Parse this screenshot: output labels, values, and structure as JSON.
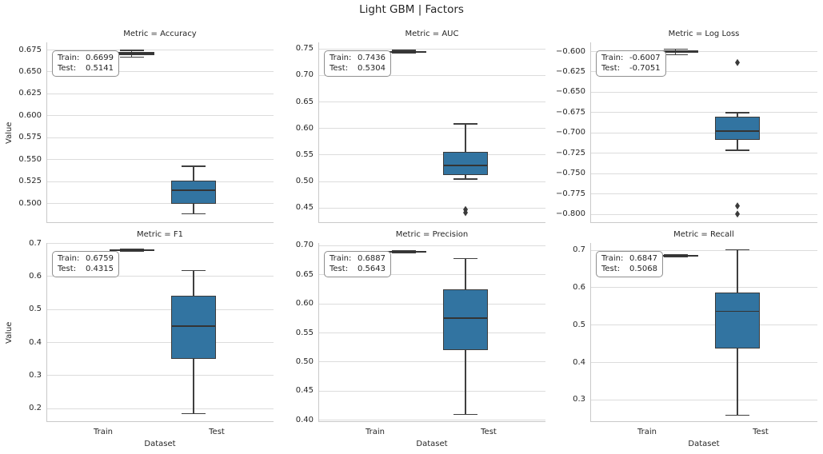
{
  "figure_title": "Light GBM | Factors",
  "colors": {
    "background": "#ffffff",
    "box_fill": "#3274a1",
    "box_edge": "#3b3b3b",
    "median": "#343434",
    "whisker": "#3f3f3f",
    "outlier": "#3a3a3a",
    "grid": "#dcdcdc",
    "spine": "#c9c9c9",
    "text": "#262626",
    "annotation_border": "#8f8f8f",
    "annotation_bg": "#ffffff"
  },
  "axis_labels": {
    "y": "Value",
    "x": "Dataset"
  },
  "x_tick_labels": [
    "Train",
    "Test"
  ],
  "annotation_labels": {
    "train": "Train:",
    "test": "Test:"
  },
  "chart_data": [
    {
      "type": "box",
      "title": "Metric = Accuracy",
      "row": 0,
      "col": 0,
      "ylim": [
        0.4775,
        0.6832
      ],
      "yticks": [
        0.675,
        0.65,
        0.625,
        0.6,
        0.575,
        0.55,
        0.525,
        0.5
      ],
      "ytick_labels": [
        "0.675",
        "0.650",
        "0.625",
        "0.600",
        "0.575",
        "0.550",
        "0.525",
        "0.500"
      ],
      "annotation": {
        "train": "0.6699",
        "test": "0.5141"
      },
      "series": [
        {
          "name": "Train",
          "whislo": 0.6662,
          "q1": 0.6685,
          "med": 0.6703,
          "q3": 0.6725,
          "whishi": 0.6742,
          "fliers": []
        },
        {
          "name": "Test",
          "whislo": 0.488,
          "q1": 0.499,
          "med": 0.515,
          "q3": 0.526,
          "whishi": 0.542,
          "fliers": []
        }
      ]
    },
    {
      "type": "box",
      "title": "Metric = AUC",
      "row": 0,
      "col": 1,
      "ylim": [
        0.421,
        0.7615
      ],
      "yticks": [
        0.75,
        0.7,
        0.65,
        0.6,
        0.55,
        0.5,
        0.45
      ],
      "ytick_labels": [
        "0.75",
        "0.70",
        "0.65",
        "0.60",
        "0.55",
        "0.50",
        "0.45"
      ],
      "annotation": {
        "train": "0.7436",
        "test": "0.5304"
      },
      "series": [
        {
          "name": "Train",
          "whislo": 0.7408,
          "q1": 0.7424,
          "med": 0.7437,
          "q3": 0.7449,
          "whishi": 0.7462,
          "fliers": []
        },
        {
          "name": "Test",
          "whislo": 0.504,
          "q1": 0.511,
          "med": 0.529,
          "q3": 0.5545,
          "whishi": 0.608,
          "fliers": [
            0.4465,
            0.4405
          ]
        }
      ]
    },
    {
      "type": "box",
      "title": "Metric = Log Loss",
      "row": 0,
      "col": 2,
      "ylim": [
        -0.811,
        -0.5892
      ],
      "yticks": [
        -0.6,
        -0.625,
        -0.65,
        -0.675,
        -0.7,
        -0.725,
        -0.75,
        -0.775,
        -0.8
      ],
      "ytick_labels": [
        "−0.600",
        "−0.625",
        "−0.650",
        "−0.675",
        "−0.700",
        "−0.725",
        "−0.750",
        "−0.775",
        "−0.800"
      ],
      "annotation": {
        "train": "-0.6007",
        "test": "-0.7051"
      },
      "series": [
        {
          "name": "Train",
          "whislo": -0.6042,
          "q1": -0.6022,
          "med": -0.6005,
          "q3": -0.599,
          "whishi": -0.5975,
          "fliers": []
        },
        {
          "name": "Test",
          "whislo": -0.7215,
          "q1": -0.7085,
          "med": -0.698,
          "q3": -0.6805,
          "whishi": -0.6755,
          "fliers": [
            -0.614,
            -0.79,
            -0.8
          ]
        }
      ]
    },
    {
      "type": "box",
      "title": "Metric = F1",
      "row": 1,
      "col": 0,
      "ylim": [
        0.158,
        0.7005
      ],
      "yticks": [
        0.7,
        0.6,
        0.5,
        0.4,
        0.3,
        0.2
      ],
      "ytick_labels": [
        "0.7",
        "0.6",
        "0.5",
        "0.4",
        "0.3",
        "0.2"
      ],
      "annotation": {
        "train": "0.6759",
        "test": "0.4315"
      },
      "series": [
        {
          "name": "Train",
          "whislo": 0.675,
          "q1": 0.677,
          "med": 0.6785,
          "q3": 0.68,
          "whishi": 0.6815,
          "fliers": []
        },
        {
          "name": "Test",
          "whislo": 0.1835,
          "q1": 0.349,
          "med": 0.448,
          "q3": 0.541,
          "whishi": 0.6175,
          "fliers": []
        }
      ]
    },
    {
      "type": "box",
      "title": "Metric = Precision",
      "row": 1,
      "col": 1,
      "ylim": [
        0.3959,
        0.7041
      ],
      "yticks": [
        0.7,
        0.65,
        0.6,
        0.55,
        0.5,
        0.45,
        0.4
      ],
      "ytick_labels": [
        "0.70",
        "0.65",
        "0.60",
        "0.55",
        "0.50",
        "0.45",
        "0.40"
      ],
      "annotation": {
        "train": "0.6887",
        "test": "0.5643"
      },
      "series": [
        {
          "name": "Train",
          "whislo": 0.687,
          "q1": 0.688,
          "med": 0.689,
          "q3": 0.69,
          "whishi": 0.691,
          "fliers": []
        },
        {
          "name": "Test",
          "whislo": 0.409,
          "q1": 0.52,
          "med": 0.575,
          "q3": 0.624,
          "whishi": 0.677,
          "fliers": []
        }
      ]
    },
    {
      "type": "box",
      "title": "Metric = Recall",
      "row": 1,
      "col": 2,
      "ylim": [
        0.24,
        0.7185
      ],
      "yticks": [
        0.7,
        0.6,
        0.5,
        0.4,
        0.3
      ],
      "ytick_labels": [
        "0.7",
        "0.6",
        "0.5",
        "0.4",
        "0.3"
      ],
      "annotation": {
        "train": "0.6847",
        "test": "0.5068"
      },
      "series": [
        {
          "name": "Train",
          "whislo": 0.682,
          "q1": 0.6835,
          "med": 0.685,
          "q3": 0.6865,
          "whishi": 0.688,
          "fliers": []
        },
        {
          "name": "Test",
          "whislo": 0.258,
          "q1": 0.437,
          "med": 0.536,
          "q3": 0.586,
          "whishi": 0.7,
          "fliers": []
        }
      ]
    }
  ]
}
